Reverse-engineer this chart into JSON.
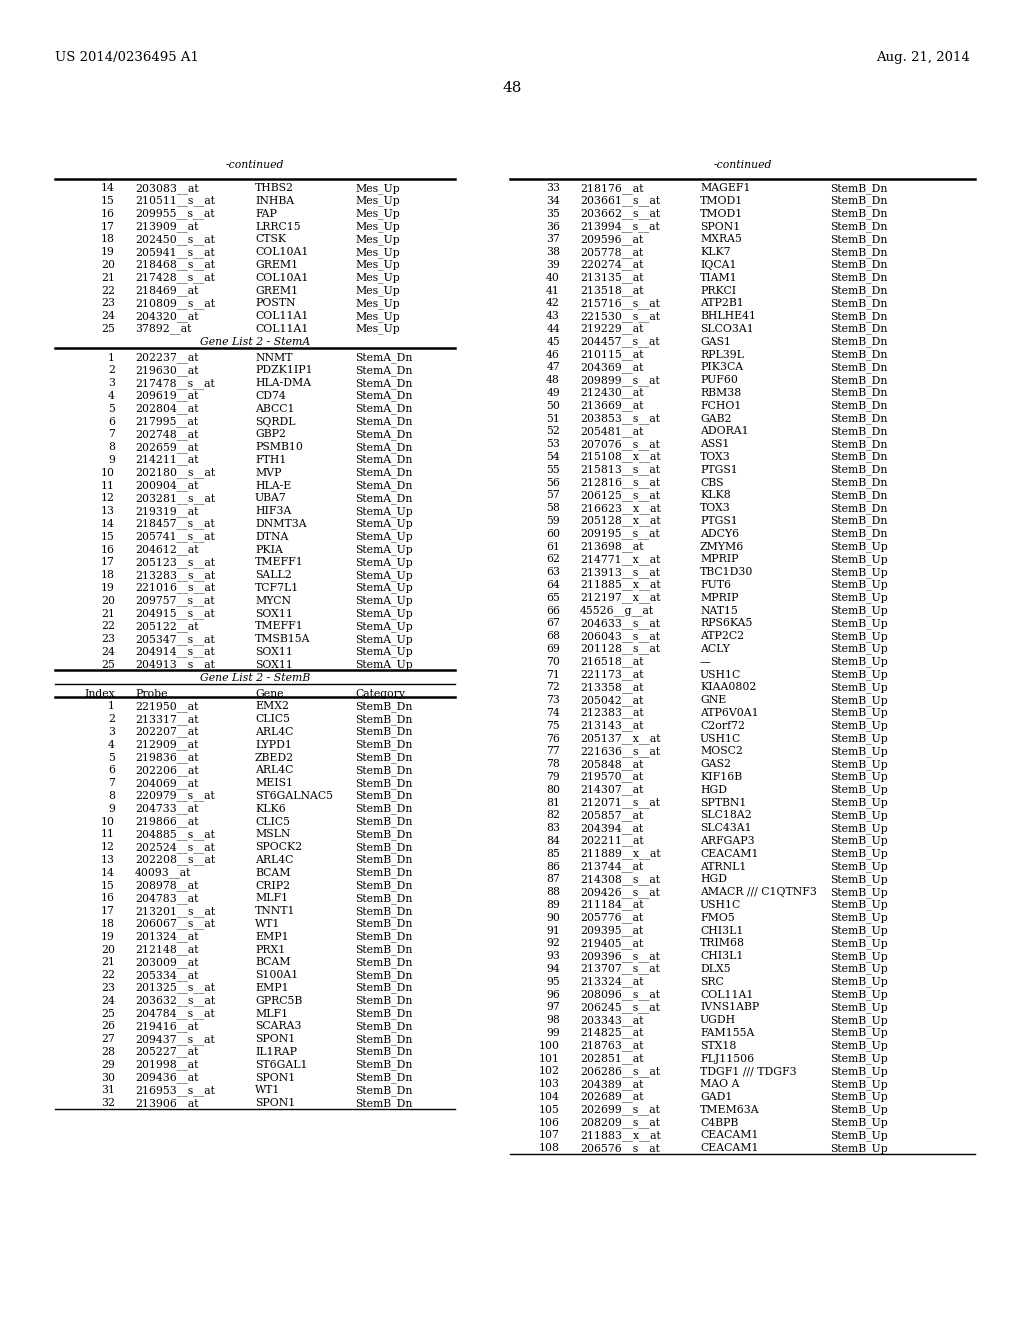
{
  "header_left": "US 2014/0236495 A1",
  "header_right": "Aug. 21, 2014",
  "page_number": "48",
  "background_color": "#ffffff",
  "font_size": 7.8,
  "left_continued_rows": [
    [
      "14",
      "203083__at",
      "THBS2",
      "Mes_Up"
    ],
    [
      "15",
      "210511__s__at",
      "INHBA",
      "Mes_Up"
    ],
    [
      "16",
      "209955__s__at",
      "FAP",
      "Mes_Up"
    ],
    [
      "17",
      "213909__at",
      "LRRC15",
      "Mes_Up"
    ],
    [
      "18",
      "202450__s__at",
      "CTSK",
      "Mes_Up"
    ],
    [
      "19",
      "205941__s__at",
      "COL10A1",
      "Mes_Up"
    ],
    [
      "20",
      "218468__s__at",
      "GREM1",
      "Mes_Up"
    ],
    [
      "21",
      "217428__s__at",
      "COL10A1",
      "Mes_Up"
    ],
    [
      "22",
      "218469__at",
      "GREM1",
      "Mes_Up"
    ],
    [
      "23",
      "210809__s__at",
      "POSTN",
      "Mes_Up"
    ],
    [
      "24",
      "204320__at",
      "COL11A1",
      "Mes_Up"
    ],
    [
      "25",
      "37892__at",
      "COL11A1",
      "Mes_Up"
    ]
  ],
  "stema_rows": [
    [
      "1",
      "202237__at",
      "NNMT",
      "StemA_Dn"
    ],
    [
      "2",
      "219630__at",
      "PDZK1IP1",
      "StemA_Dn"
    ],
    [
      "3",
      "217478__s__at",
      "HLA-DMA",
      "StemA_Dn"
    ],
    [
      "4",
      "209619__at",
      "CD74",
      "StemA_Dn"
    ],
    [
      "5",
      "202804__at",
      "ABCC1",
      "StemA_Dn"
    ],
    [
      "6",
      "217995__at",
      "SQRDL",
      "StemA_Dn"
    ],
    [
      "7",
      "202748__at",
      "GBP2",
      "StemA_Dn"
    ],
    [
      "8",
      "202659__at",
      "PSMB10",
      "StemA_Dn"
    ],
    [
      "9",
      "214211__at",
      "FTH1",
      "StemA_Dn"
    ],
    [
      "10",
      "202180__s__at",
      "MVP",
      "StemA_Dn"
    ],
    [
      "11",
      "200904__at",
      "HLA-E",
      "StemA_Dn"
    ],
    [
      "12",
      "203281__s__at",
      "UBA7",
      "StemA_Dn"
    ],
    [
      "13",
      "219319__at",
      "HIF3A",
      "StemA_Up"
    ],
    [
      "14",
      "218457__s__at",
      "DNMT3A",
      "StemA_Up"
    ],
    [
      "15",
      "205741__s__at",
      "DTNA",
      "StemA_Up"
    ],
    [
      "16",
      "204612__at",
      "PKIA",
      "StemA_Up"
    ],
    [
      "17",
      "205123__s__at",
      "TMEFF1",
      "StemA_Up"
    ],
    [
      "18",
      "213283__s__at",
      "SALL2",
      "StemA_Up"
    ],
    [
      "19",
      "221016__s__at",
      "TCF7L1",
      "StemA_Up"
    ],
    [
      "20",
      "209757__s__at",
      "MYCN",
      "StemA_Up"
    ],
    [
      "21",
      "204915__s__at",
      "SOX11",
      "StemA_Up"
    ],
    [
      "22",
      "205122__at",
      "TMEFF1",
      "StemA_Up"
    ],
    [
      "23",
      "205347__s__at",
      "TMSB15A",
      "StemA_Up"
    ],
    [
      "24",
      "204914__s__at",
      "SOX11",
      "StemA_Up"
    ],
    [
      "25",
      "204913__s__at",
      "SOX11",
      "StemA_Up"
    ]
  ],
  "stemb_col_headers": [
    "Index",
    "Probe",
    "Gene",
    "Category"
  ],
  "stemb_rows": [
    [
      "1",
      "221950__at",
      "EMX2",
      "StemB_Dn"
    ],
    [
      "2",
      "213317__at",
      "CLIC5",
      "StemB_Dn"
    ],
    [
      "3",
      "202207__at",
      "ARL4C",
      "StemB_Dn"
    ],
    [
      "4",
      "212909__at",
      "LYPD1",
      "StemB_Dn"
    ],
    [
      "5",
      "219836__at",
      "ZBED2",
      "StemB_Dn"
    ],
    [
      "6",
      "202206__at",
      "ARL4C",
      "StemB_Dn"
    ],
    [
      "7",
      "204069__at",
      "MEIS1",
      "StemB_Dn"
    ],
    [
      "8",
      "220979__s__at",
      "ST6GALNAC5",
      "StemB_Dn"
    ],
    [
      "9",
      "204733__at",
      "KLK6",
      "StemB_Dn"
    ],
    [
      "10",
      "219866__at",
      "CLIC5",
      "StemB_Dn"
    ],
    [
      "11",
      "204885__s__at",
      "MSLN",
      "StemB_Dn"
    ],
    [
      "12",
      "202524__s__at",
      "SPOCK2",
      "StemB_Dn"
    ],
    [
      "13",
      "202208__s__at",
      "ARL4C",
      "StemB_Dn"
    ],
    [
      "14",
      "40093__at",
      "BCAM",
      "StemB_Dn"
    ],
    [
      "15",
      "208978__at",
      "CRIP2",
      "StemB_Dn"
    ],
    [
      "16",
      "204783__at",
      "MLF1",
      "StemB_Dn"
    ],
    [
      "17",
      "213201__s__at",
      "TNNT1",
      "StemB_Dn"
    ],
    [
      "18",
      "206067__s__at",
      "WT1",
      "StemB_Dn"
    ],
    [
      "19",
      "201324__at",
      "EMP1",
      "StemB_Dn"
    ],
    [
      "20",
      "212148__at",
      "PRX1",
      "StemB_Dn"
    ],
    [
      "21",
      "203009__at",
      "BCAM",
      "StemB_Dn"
    ],
    [
      "22",
      "205334__at",
      "S100A1",
      "StemB_Dn"
    ],
    [
      "23",
      "201325__s__at",
      "EMP1",
      "StemB_Dn"
    ],
    [
      "24",
      "203632__s__at",
      "GPRC5B",
      "StemB_Dn"
    ],
    [
      "25",
      "204784__s__at",
      "MLF1",
      "StemB_Dn"
    ],
    [
      "26",
      "219416__at",
      "SCARA3",
      "StemB_Dn"
    ],
    [
      "27",
      "209437__s__at",
      "SPON1",
      "StemB_Dn"
    ],
    [
      "28",
      "205227__at",
      "IL1RAP",
      "StemB_Dn"
    ],
    [
      "29",
      "201998__at",
      "ST6GAL1",
      "StemB_Dn"
    ],
    [
      "30",
      "209436__at",
      "SPON1",
      "StemB_Dn"
    ],
    [
      "31",
      "216953__s__at",
      "WT1",
      "StemB_Dn"
    ],
    [
      "32",
      "213906__at",
      "SPON1",
      "StemB_Dn"
    ]
  ],
  "right_rows": [
    [
      "33",
      "218176__at",
      "MAGEF1",
      "StemB_Dn"
    ],
    [
      "34",
      "203661__s__at",
      "TMOD1",
      "StemB_Dn"
    ],
    [
      "35",
      "203662__s__at",
      "TMOD1",
      "StemB_Dn"
    ],
    [
      "36",
      "213994__s__at",
      "SPON1",
      "StemB_Dn"
    ],
    [
      "37",
      "209596__at",
      "MXRA5",
      "StemB_Dn"
    ],
    [
      "38",
      "205778__at",
      "KLK7",
      "StemB_Dn"
    ],
    [
      "39",
      "220274__at",
      "IQCA1",
      "StemB_Dn"
    ],
    [
      "40",
      "213135__at",
      "TIAM1",
      "StemB_Dn"
    ],
    [
      "41",
      "213518__at",
      "PRKCI",
      "StemB_Dn"
    ],
    [
      "42",
      "215716__s__at",
      "ATP2B1",
      "StemB_Dn"
    ],
    [
      "43",
      "221530__s__at",
      "BHLHE41",
      "StemB_Dn"
    ],
    [
      "44",
      "219229__at",
      "SLCO3A1",
      "StemB_Dn"
    ],
    [
      "45",
      "204457__s__at",
      "GAS1",
      "StemB_Dn"
    ],
    [
      "46",
      "210115__at",
      "RPL39L",
      "StemB_Dn"
    ],
    [
      "47",
      "204369__at",
      "PIK3CA",
      "StemB_Dn"
    ],
    [
      "48",
      "209899__s__at",
      "PUF60",
      "StemB_Dn"
    ],
    [
      "49",
      "212430__at",
      "RBM38",
      "StemB_Dn"
    ],
    [
      "50",
      "213669__at",
      "FCHO1",
      "StemB_Dn"
    ],
    [
      "51",
      "203853__s__at",
      "GAB2",
      "StemB_Dn"
    ],
    [
      "52",
      "205481__at",
      "ADORA1",
      "StemB_Dn"
    ],
    [
      "53",
      "207076__s__at",
      "ASS1",
      "StemB_Dn"
    ],
    [
      "54",
      "215108__x__at",
      "TOX3",
      "StemB_Dn"
    ],
    [
      "55",
      "215813__s__at",
      "PTGS1",
      "StemB_Dn"
    ],
    [
      "56",
      "212816__s__at",
      "CBS",
      "StemB_Dn"
    ],
    [
      "57",
      "206125__s__at",
      "KLK8",
      "StemB_Dn"
    ],
    [
      "58",
      "216623__x__at",
      "TOX3",
      "StemB_Dn"
    ],
    [
      "59",
      "205128__x__at",
      "PTGS1",
      "StemB_Dn"
    ],
    [
      "60",
      "209195__s__at",
      "ADCY6",
      "StemB_Dn"
    ],
    [
      "61",
      "213698__at",
      "ZMYM6",
      "StemB_Up"
    ],
    [
      "62",
      "214771__x__at",
      "MPRIP",
      "StemB_Up"
    ],
    [
      "63",
      "213913__s__at",
      "TBC1D30",
      "StemB_Up"
    ],
    [
      "64",
      "211885__x__at",
      "FUT6",
      "StemB_Up"
    ],
    [
      "65",
      "212197__x__at",
      "MPRIP",
      "StemB_Up"
    ],
    [
      "66",
      "45526__g__at",
      "NAT15",
      "StemB_Up"
    ],
    [
      "67",
      "204633__s__at",
      "RPS6KA5",
      "StemB_Up"
    ],
    [
      "68",
      "206043__s__at",
      "ATP2C2",
      "StemB_Up"
    ],
    [
      "69",
      "201128__s__at",
      "ACLY",
      "StemB_Up"
    ],
    [
      "70",
      "216518__at",
      "—",
      "StemB_Up"
    ],
    [
      "71",
      "221173__at",
      "USH1C",
      "StemB_Up"
    ],
    [
      "72",
      "213358__at",
      "KIAA0802",
      "StemB_Up"
    ],
    [
      "73",
      "205042__at",
      "GNE",
      "StemB_Up"
    ],
    [
      "74",
      "212383__at",
      "ATP6V0A1",
      "StemB_Up"
    ],
    [
      "75",
      "213143__at",
      "C2orf72",
      "StemB_Up"
    ],
    [
      "76",
      "205137__x__at",
      "USH1C",
      "StemB_Up"
    ],
    [
      "77",
      "221636__s__at",
      "MOSC2",
      "StemB_Up"
    ],
    [
      "78",
      "205848__at",
      "GAS2",
      "StemB_Up"
    ],
    [
      "79",
      "219570__at",
      "KIF16B",
      "StemB_Up"
    ],
    [
      "80",
      "214307__at",
      "HGD",
      "StemB_Up"
    ],
    [
      "81",
      "212071__s__at",
      "SPTBN1",
      "StemB_Up"
    ],
    [
      "82",
      "205857__at",
      "SLC18A2",
      "StemB_Up"
    ],
    [
      "83",
      "204394__at",
      "SLC43A1",
      "StemB_Up"
    ],
    [
      "84",
      "202211__at",
      "ARFGAP3",
      "StemB_Up"
    ],
    [
      "85",
      "211889__x__at",
      "CEACAM1",
      "StemB_Up"
    ],
    [
      "86",
      "213744__at",
      "ATRNL1",
      "StemB_Up"
    ],
    [
      "87",
      "214308__s__at",
      "HGD",
      "StemB_Up"
    ],
    [
      "88",
      "209426__s__at",
      "AMACR /// C1QTNF3",
      "StemB_Up"
    ],
    [
      "89",
      "211184__at",
      "USH1C",
      "StemB_Up"
    ],
    [
      "90",
      "205776__at",
      "FMO5",
      "StemB_Up"
    ],
    [
      "91",
      "209395__at",
      "CHI3L1",
      "StemB_Up"
    ],
    [
      "92",
      "219405__at",
      "TRIM68",
      "StemB_Up"
    ],
    [
      "93",
      "209396__s__at",
      "CHI3L1",
      "StemB_Up"
    ],
    [
      "94",
      "213707__s__at",
      "DLX5",
      "StemB_Up"
    ],
    [
      "95",
      "213324__at",
      "SRC",
      "StemB_Up"
    ],
    [
      "96",
      "208096__s__at",
      "COL11A1",
      "StemB_Up"
    ],
    [
      "97",
      "206245__s__at",
      "IVNS1ABP",
      "StemB_Up"
    ],
    [
      "98",
      "203343__at",
      "UGDH",
      "StemB_Up"
    ],
    [
      "99",
      "214825__at",
      "FAM155A",
      "StemB_Up"
    ],
    [
      "100",
      "218763__at",
      "STX18",
      "StemB_Up"
    ],
    [
      "101",
      "202851__at",
      "FLJ11506",
      "StemB_Up"
    ],
    [
      "102",
      "206286__s__at",
      "TDGF1 /// TDGF3",
      "StemB_Up"
    ],
    [
      "103",
      "204389__at",
      "MAO A",
      "StemB_Up"
    ],
    [
      "104",
      "202689__at",
      "GAD1",
      "StemB_Up"
    ],
    [
      "105",
      "202699__s__at",
      "TMEM63A",
      "StemB_Up"
    ],
    [
      "106",
      "208209__s__at",
      "C4BPB",
      "StemB_Up"
    ],
    [
      "107",
      "211883__x__at",
      "CEACAM1",
      "StemB_Up"
    ],
    [
      "108",
      "206576__s__at",
      "CEACAM1",
      "StemB_Up"
    ]
  ]
}
